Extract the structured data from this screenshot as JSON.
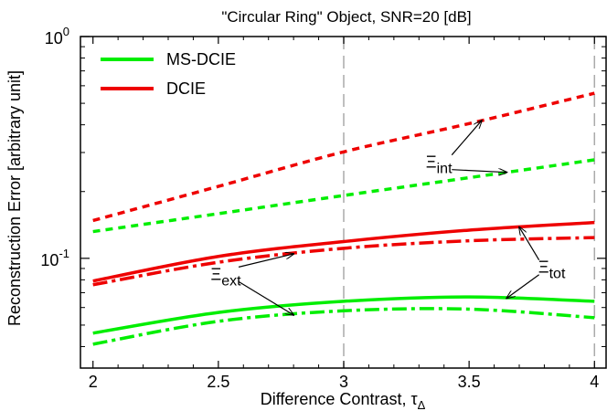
{
  "chart_data": {
    "type": "line",
    "title": "\"Circular Ring\" Object, SNR=20 [dB]",
    "xlabel": "Difference Contrast, τ",
    "xlabel_sub": "Δ",
    "ylabel": "Reconstruction Error [arbitrary unit]",
    "xlim": [
      1.95,
      4.05
    ],
    "ylim": [
      0.032,
      1.0
    ],
    "yscale": "log",
    "grid": false,
    "legend_position": "top-left",
    "x_ticks": [
      2,
      2.5,
      3,
      3.5,
      4
    ],
    "x_tick_labels": [
      "2",
      "2.5",
      "3",
      "3.5",
      "4"
    ],
    "y_ticks": [
      0.1,
      1
    ],
    "y_tick_labels": [
      {
        "base": "10",
        "exp": "-1"
      },
      {
        "base": "10",
        "exp": "0"
      }
    ],
    "reference_lines_x": [
      3,
      4
    ],
    "x": [
      2.0,
      2.5,
      3.0,
      3.5,
      4.0
    ],
    "series": [
      {
        "name": "MS-DCIE",
        "kind": "tot",
        "color": "#00ee00",
        "style": "solid",
        "values": [
          0.046,
          0.057,
          0.064,
          0.067,
          0.064
        ]
      },
      {
        "kind": "ext",
        "color": "#00ee00",
        "style": "dashdot",
        "values": [
          0.041,
          0.052,
          0.058,
          0.059,
          0.054
        ]
      },
      {
        "kind": "int",
        "color": "#00ee00",
        "style": "dashed",
        "values": [
          0.132,
          0.159,
          0.192,
          0.231,
          0.278
        ]
      },
      {
        "name": "DCIE",
        "kind": "tot",
        "color": "#ee0000",
        "style": "solid",
        "values": [
          0.079,
          0.102,
          0.119,
          0.134,
          0.145
        ]
      },
      {
        "kind": "ext",
        "color": "#ee0000",
        "style": "dashdot",
        "values": [
          0.076,
          0.096,
          0.111,
          0.12,
          0.124
        ]
      },
      {
        "kind": "int",
        "color": "#ee0000",
        "style": "dashed",
        "values": [
          0.148,
          0.211,
          0.302,
          0.405,
          0.555
        ]
      }
    ],
    "annotations": [
      {
        "symbol": "Ξ",
        "sub": "int"
      },
      {
        "symbol": "Ξ",
        "sub": "ext"
      },
      {
        "symbol": "Ξ",
        "sub": "tot"
      }
    ]
  }
}
